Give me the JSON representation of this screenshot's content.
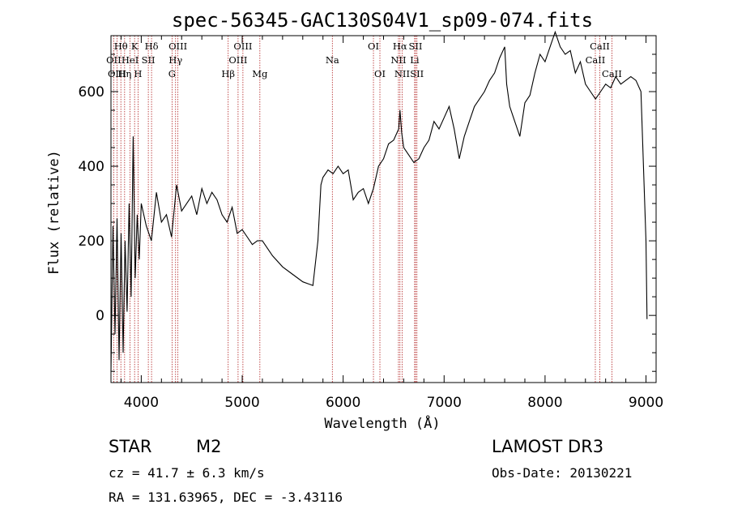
{
  "chart_data": {
    "type": "line",
    "title": "spec-56345-GAC130S04V1_sp09-074.fits",
    "xlabel": "Wavelength (Å)",
    "ylabel": "Flux (relative)",
    "xlim": [
      3700,
      9100
    ],
    "ylim": [
      -180,
      750
    ],
    "x_ticks": [
      4000,
      5000,
      6000,
      7000,
      8000,
      9000
    ],
    "y_ticks": [
      0,
      200,
      400,
      600
    ],
    "series": [
      {
        "name": "flux",
        "x": [
          3700,
          3720,
          3740,
          3760,
          3780,
          3800,
          3820,
          3840,
          3860,
          3880,
          3900,
          3920,
          3940,
          3960,
          3980,
          4000,
          4050,
          4100,
          4150,
          4200,
          4250,
          4300,
          4350,
          4400,
          4450,
          4500,
          4550,
          4600,
          4650,
          4700,
          4750,
          4800,
          4850,
          4900,
          4950,
          5000,
          5050,
          5100,
          5150,
          5200,
          5300,
          5400,
          5500,
          5600,
          5700,
          5750,
          5780,
          5800,
          5850,
          5900,
          5950,
          6000,
          6050,
          6100,
          6150,
          6200,
          6250,
          6300,
          6350,
          6400,
          6450,
          6500,
          6550,
          6563,
          6580,
          6600,
          6650,
          6700,
          6750,
          6800,
          6850,
          6900,
          6950,
          7000,
          7050,
          7100,
          7150,
          7200,
          7250,
          7300,
          7350,
          7400,
          7450,
          7500,
          7550,
          7600,
          7620,
          7650,
          7700,
          7750,
          7800,
          7850,
          7900,
          7950,
          8000,
          8050,
          8100,
          8150,
          8200,
          8250,
          8300,
          8350,
          8400,
          8450,
          8500,
          8550,
          8600,
          8650,
          8700,
          8750,
          8800,
          8850,
          8900,
          8950,
          9000,
          9010
        ],
        "y": [
          -150,
          240,
          -50,
          260,
          -120,
          220,
          -100,
          200,
          10,
          300,
          50,
          480,
          100,
          270,
          150,
          300,
          240,
          200,
          330,
          250,
          270,
          210,
          350,
          280,
          300,
          320,
          270,
          340,
          300,
          330,
          310,
          270,
          250,
          290,
          220,
          230,
          210,
          190,
          200,
          200,
          160,
          130,
          110,
          90,
          80,
          200,
          350,
          370,
          390,
          380,
          400,
          380,
          390,
          310,
          330,
          340,
          300,
          340,
          400,
          420,
          460,
          470,
          500,
          550,
          490,
          450,
          430,
          410,
          420,
          450,
          470,
          520,
          500,
          530,
          560,
          500,
          420,
          480,
          520,
          560,
          580,
          600,
          630,
          650,
          690,
          720,
          620,
          560,
          520,
          480,
          570,
          590,
          650,
          700,
          680,
          720,
          760,
          720,
          700,
          710,
          650,
          680,
          620,
          600,
          580,
          600,
          620,
          610,
          640,
          620,
          630,
          640,
          630,
          600,
          200,
          -10
        ]
      }
    ],
    "spectral_lines": [
      {
        "name": "Hθ",
        "x": 3798,
        "row": 1
      },
      {
        "name": "OII",
        "x": 3727,
        "row": 2
      },
      {
        "name": "OIII",
        "x": 3760,
        "row": 3
      },
      {
        "name": "K",
        "x": 3934,
        "row": 1
      },
      {
        "name": "HeI",
        "x": 3889,
        "row": 2
      },
      {
        "name": "Hη",
        "x": 3835,
        "row": 3
      },
      {
        "name": "Hδ",
        "x": 4102,
        "row": 1
      },
      {
        "name": "SII",
        "x": 4070,
        "row": 2
      },
      {
        "name": "H",
        "x": 3968,
        "row": 3
      },
      {
        "name": "OIII",
        "x": 4363,
        "row": 1
      },
      {
        "name": "Hγ",
        "x": 4340,
        "row": 2
      },
      {
        "name": "G",
        "x": 4305,
        "row": 3
      },
      {
        "name": "OIII",
        "x": 5007,
        "row": 1
      },
      {
        "name": "OIII",
        "x": 4959,
        "row": 2
      },
      {
        "name": "Hβ",
        "x": 4861,
        "row": 3
      },
      {
        "name": "Mg",
        "x": 5175,
        "row": 3
      },
      {
        "name": "Na",
        "x": 5893,
        "row": 2
      },
      {
        "name": "OI",
        "x": 6300,
        "row": 1
      },
      {
        "name": "OI",
        "x": 6364,
        "row": 3
      },
      {
        "name": "Hα",
        "x": 6563,
        "row": 1
      },
      {
        "name": "NII",
        "x": 6548,
        "row": 2
      },
      {
        "name": "NII",
        "x": 6584,
        "row": 3
      },
      {
        "name": "SII",
        "x": 6717,
        "row": 1
      },
      {
        "name": "Li",
        "x": 6708,
        "row": 2
      },
      {
        "name": "SII",
        "x": 6731,
        "row": 3
      },
      {
        "name": "CaII",
        "x": 8542,
        "row": 1
      },
      {
        "name": "CaII",
        "x": 8498,
        "row": 2
      },
      {
        "name": "CaII",
        "x": 8662,
        "row": 3
      }
    ]
  },
  "info": {
    "object_class": "STAR",
    "subclass": "M2",
    "survey": "LAMOST DR3",
    "cz": "cz = 41.7 ± 6.3 km/s",
    "obs_date": "Obs-Date: 20130221",
    "coords": "RA = 131.63965, DEC =  -3.43116"
  },
  "colors": {
    "line": "#000000",
    "marker": "#b22222"
  }
}
